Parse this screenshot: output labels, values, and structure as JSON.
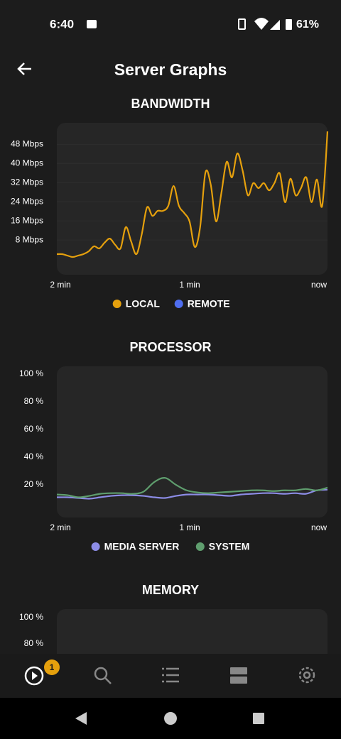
{
  "status_bar": {
    "time": "6:40",
    "battery": "61%"
  },
  "header": {
    "title": "Server Graphs"
  },
  "charts": [
    {
      "type": "line",
      "title": "BANDWIDTH",
      "ylim": [
        -6.5,
        57
      ],
      "yticks": [
        {
          "value": 8,
          "label": "8 Mbps"
        },
        {
          "value": 16,
          "label": "16 Mbps"
        },
        {
          "value": 24,
          "label": "24 Mbps"
        },
        {
          "value": 32,
          "label": "32 Mbps"
        },
        {
          "value": 40,
          "label": "40 Mbps"
        },
        {
          "value": 48,
          "label": "48 Mbps"
        }
      ],
      "grid": true,
      "xlabels": [
        "2 min",
        "1 min",
        "now"
      ],
      "series": [
        {
          "name": "LOCAL",
          "color": "#e5a00d",
          "values": [
            2.1,
            2.1,
            1.5,
            0.9,
            1.5,
            2.1,
            3.3,
            5.4,
            4.5,
            6.9,
            8.6,
            6,
            4.5,
            13.4,
            7.4,
            2.1,
            10.4,
            21.7,
            18.1,
            20.2,
            20.2,
            22.3,
            30.6,
            22.3,
            19.3,
            15.8,
            5.1,
            13.4,
            36.2,
            31.2,
            15.8,
            27.6,
            40.7,
            34.2,
            44.2,
            37.1,
            26.7,
            31.8,
            29.7,
            31.8,
            28.8,
            31.8,
            35.9,
            23.8,
            33.6,
            26.7,
            29.7,
            34.2,
            23.8,
            33.3,
            22.3,
            53.4
          ]
        },
        {
          "name": "REMOTE",
          "color": "#4f6ef0",
          "values": []
        }
      ]
    },
    {
      "type": "line",
      "title": "PROCESSOR",
      "ylim": [
        -3.6,
        105.6
      ],
      "yticks": [
        {
          "value": 20,
          "label": "20 %"
        },
        {
          "value": 40,
          "label": "40 %"
        },
        {
          "value": 60,
          "label": "60 %"
        },
        {
          "value": 80,
          "label": "80 %"
        },
        {
          "value": 100,
          "label": "100 %"
        }
      ],
      "grid": false,
      "xlabels": [
        "2 min",
        "1 min",
        "now"
      ],
      "series": [
        {
          "name": "MEDIA SERVER",
          "color": "#8c8ce6",
          "values": [
            11,
            11,
            10.5,
            10,
            11,
            12,
            12.5,
            12.5,
            12,
            11,
            10.5,
            12,
            13,
            13,
            13,
            12.5,
            12,
            13,
            13.5,
            14,
            14,
            13.5,
            14,
            13.5,
            16,
            16.5
          ]
        },
        {
          "name": "SYSTEM",
          "color": "#5f9e6e",
          "values": [
            13,
            12.5,
            11,
            12,
            13.5,
            14,
            14,
            13.5,
            15,
            22,
            25,
            20,
            16,
            14.5,
            14,
            14.5,
            15,
            15.5,
            16,
            16,
            15.5,
            16,
            16,
            17,
            16,
            18
          ]
        }
      ]
    },
    {
      "type": "line",
      "title": "MEMORY",
      "ylim": [
        -8.6,
        106.5
      ],
      "yticks": [
        {
          "value": 80,
          "label": "80 %"
        },
        {
          "value": 100,
          "label": "100 %"
        }
      ],
      "grid": false,
      "series": []
    }
  ],
  "nav": {
    "badge": "1"
  }
}
